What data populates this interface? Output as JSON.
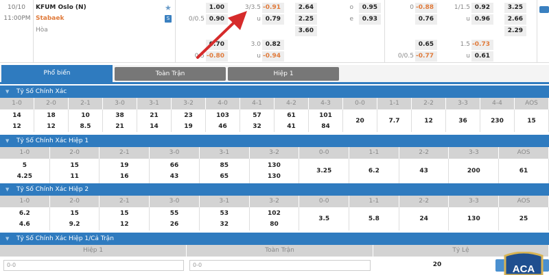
{
  "match": {
    "date": "10/10",
    "time": "11:00PM",
    "home": "KFUM Oslo (N)",
    "away": "Stabaek",
    "draw": "Hòa",
    "star_icon": "star-icon",
    "stats_icon": "stats-badge-icon",
    "stats_label": "S"
  },
  "odds": {
    "a": {
      "labels": [
        "",
        "0/0.5",
        "",
        "0.5"
      ],
      "values": [
        "1.00",
        "0.90",
        "0.70",
        "-0.80"
      ]
    },
    "b": {
      "labels": [
        "3/3.5",
        "u",
        "3.0",
        "u"
      ],
      "values": [
        "-0.91",
        "0.79",
        "0.82",
        "-0.94"
      ]
    },
    "c": {
      "values": [
        "2.64",
        "2.25",
        "3.60"
      ]
    },
    "d": {
      "labels": [
        "o",
        "e"
      ],
      "values": [
        "0.95",
        "0.93"
      ]
    },
    "e": {
      "labels": [
        "0",
        "",
        "",
        "0/0.5"
      ],
      "values": [
        "-0.88",
        "0.76",
        "0.65",
        "-0.77"
      ]
    },
    "f": {
      "labels": [
        "1/1.5",
        "u",
        "1.5",
        "u"
      ],
      "values": [
        "0.92",
        "0.96",
        "-0.73",
        "0.61"
      ]
    },
    "g": {
      "values": [
        "3.25",
        "2.66",
        "2.29"
      ]
    }
  },
  "colors": {
    "accent": "#2f7bbf",
    "negative": "#e07a3a",
    "annotation_arrow": "#d62b2b"
  },
  "tabs": [
    {
      "label": "Phổ biến",
      "active": true
    },
    {
      "label": "Toàn Trận"
    },
    {
      "label": "Hiệp 1"
    }
  ],
  "sections": [
    {
      "title": "Tỷ Số Chính Xác",
      "headers": [
        "1-0",
        "2-0",
        "2-1",
        "3-0",
        "3-1",
        "3-2",
        "4-0",
        "4-1",
        "4-2",
        "4-3",
        "0-0",
        "1-1",
        "2-2",
        "3-3",
        "4-4",
        "AOS"
      ],
      "cells": [
        [
          "14",
          "12"
        ],
        [
          "18",
          "12"
        ],
        [
          "10",
          "8.5"
        ],
        [
          "38",
          "21"
        ],
        [
          "21",
          "14"
        ],
        [
          "23",
          "19"
        ],
        [
          "103",
          "46"
        ],
        [
          "57",
          "32"
        ],
        [
          "61",
          "41"
        ],
        [
          "101",
          "84"
        ],
        [
          "20"
        ],
        [
          "7.7"
        ],
        [
          "12"
        ],
        [
          "36"
        ],
        [
          "230"
        ],
        [
          "15"
        ]
      ]
    },
    {
      "title": "Tỷ Số Chính Xác Hiệp 1",
      "headers": [
        "1-0",
        "2-0",
        "2-1",
        "3-0",
        "3-1",
        "3-2",
        "0-0",
        "1-1",
        "2-2",
        "3-3",
        "AOS"
      ],
      "cells": [
        [
          "5",
          "4.25"
        ],
        [
          "15",
          "11"
        ],
        [
          "19",
          "16"
        ],
        [
          "66",
          "43"
        ],
        [
          "85",
          "65"
        ],
        [
          "130",
          "130"
        ],
        [
          "3.25"
        ],
        [
          "6.2"
        ],
        [
          "43"
        ],
        [
          "200"
        ],
        [
          "61"
        ]
      ]
    },
    {
      "title": "Tỷ Số Chính Xác Hiệp 2",
      "headers": [
        "1-0",
        "2-0",
        "2-1",
        "3-0",
        "3-1",
        "3-2",
        "0-0",
        "1-1",
        "2-2",
        "3-3",
        "AOS"
      ],
      "cells": [
        [
          "6.2",
          "4.6"
        ],
        [
          "15",
          "9.2"
        ],
        [
          "15",
          "12"
        ],
        [
          "55",
          "26"
        ],
        [
          "53",
          "32"
        ],
        [
          "102",
          "80"
        ],
        [
          "3.5"
        ],
        [
          "5.8"
        ],
        [
          "24"
        ],
        [
          "130"
        ],
        [
          "25"
        ]
      ]
    }
  ],
  "htft": {
    "title": "Tỷ Số Chính Xác Hiệp 1/Cả Trận",
    "headers": [
      "Hiệp 1",
      "Toàn Trận",
      "Tỷ Lệ"
    ],
    "ht_value": "0-0",
    "ft_value": "0-0",
    "odds": "20"
  },
  "logo": {
    "text": "ACA"
  }
}
